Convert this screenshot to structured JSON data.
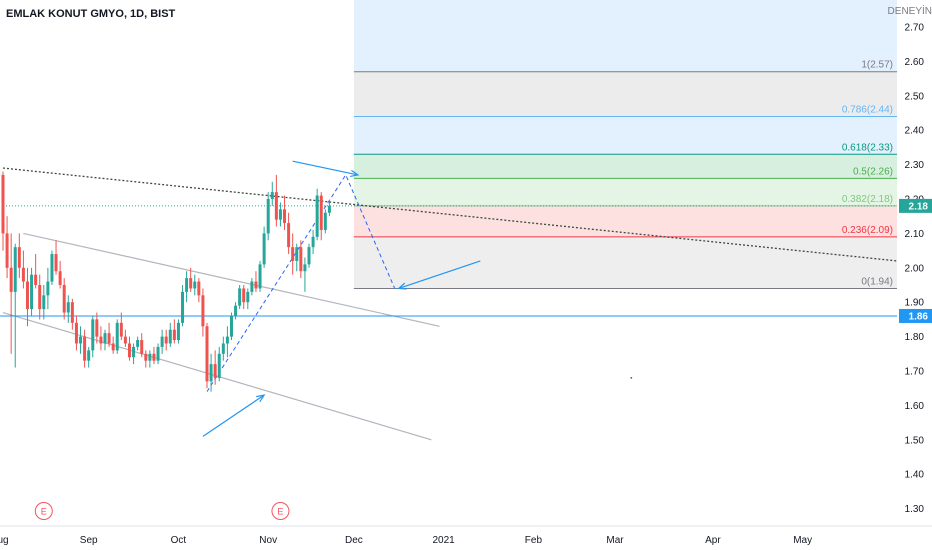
{
  "header": {
    "title": "EMLAK KONUT GMYO, 1D, BIST",
    "corner_text": "DENEYİN"
  },
  "chart_data": {
    "type": "candlestick",
    "ylim": [
      1.25,
      2.74
    ],
    "y_ticks": [
      "1.30",
      "1.40",
      "1.50",
      "1.60",
      "1.70",
      "1.80",
      "1.90",
      "2.00",
      "2.10",
      "2.20",
      "2.30",
      "2.40",
      "2.50",
      "2.60",
      "2.70"
    ],
    "x_ticks": [
      {
        "label": "ug",
        "bar": 0
      },
      {
        "label": "Sep",
        "bar": 21
      },
      {
        "label": "Oct",
        "bar": 43
      },
      {
        "label": "Nov",
        "bar": 65
      },
      {
        "label": "Dec",
        "bar": 86
      },
      {
        "label": "2021",
        "bar": 108
      },
      {
        "label": "Feb",
        "bar": 130
      },
      {
        "label": "Mar",
        "bar": 150
      },
      {
        "label": "Apr",
        "bar": 174
      },
      {
        "label": "May",
        "bar": 196
      }
    ],
    "price_labels": [
      {
        "text": "2.18",
        "value": 2.18,
        "color": "#26a69a"
      },
      {
        "text": "1.86",
        "value": 1.86,
        "color": "#2196f3"
      }
    ],
    "fibonacci": [
      {
        "label": "1(2.57)",
        "value": 2.57,
        "color": "#787b86"
      },
      {
        "label": "0.786(2.44)",
        "value": 2.44,
        "color": "#64b5f6"
      },
      {
        "label": "0.618(2.33)",
        "value": 2.33,
        "color": "#089981"
      },
      {
        "label": "0.5(2.26)",
        "value": 2.26,
        "color": "#4caf50"
      },
      {
        "label": "0.382(2.18)",
        "value": 2.18,
        "color": "#81c784"
      },
      {
        "label": "0.236(2.09)",
        "value": 2.09,
        "color": "#f23645"
      },
      {
        "label": "0(1.94)",
        "value": 1.94,
        "color": "#787b86"
      }
    ],
    "fib_zone_colors": [
      "#e3f0fd",
      "#ececec",
      "#e3f0fd",
      "#d6efde",
      "#e4f5e6",
      "#fde1e1"
    ],
    "earnings_markers": [
      {
        "label": "E",
        "bar": 10
      },
      {
        "label": "E",
        "bar": 68
      }
    ],
    "candles": [
      [
        2.27,
        2.28,
        2.05,
        2.1
      ],
      [
        2.1,
        2.15,
        1.97,
        2.0
      ],
      [
        2.0,
        2.1,
        1.75,
        1.93
      ],
      [
        1.93,
        2.07,
        1.71,
        2.06
      ],
      [
        2.06,
        2.1,
        1.97,
        2.0
      ],
      [
        2.0,
        2.05,
        1.94,
        1.96
      ],
      [
        1.96,
        2.0,
        1.83,
        1.88
      ],
      [
        1.88,
        2.0,
        1.86,
        1.98
      ],
      [
        1.98,
        2.04,
        1.94,
        1.95
      ],
      [
        1.95,
        1.98,
        1.85,
        1.88
      ],
      [
        1.88,
        1.95,
        1.85,
        1.92
      ],
      [
        1.92,
        2.0,
        1.88,
        1.96
      ],
      [
        1.96,
        2.05,
        1.95,
        2.04
      ],
      [
        2.04,
        2.08,
        1.98,
        1.99
      ],
      [
        1.99,
        2.02,
        1.94,
        1.95
      ],
      [
        1.95,
        1.97,
        1.85,
        1.87
      ],
      [
        1.87,
        1.92,
        1.84,
        1.9
      ],
      [
        1.9,
        1.91,
        1.82,
        1.84
      ],
      [
        1.84,
        1.86,
        1.76,
        1.78
      ],
      [
        1.78,
        1.83,
        1.75,
        1.8
      ],
      [
        1.8,
        1.82,
        1.71,
        1.73
      ],
      [
        1.73,
        1.77,
        1.71,
        1.76
      ],
      [
        1.76,
        1.86,
        1.74,
        1.85
      ],
      [
        1.85,
        1.87,
        1.78,
        1.8
      ],
      [
        1.8,
        1.83,
        1.76,
        1.78
      ],
      [
        1.78,
        1.82,
        1.76,
        1.81
      ],
      [
        1.81,
        1.84,
        1.77,
        1.78
      ],
      [
        1.78,
        1.8,
        1.75,
        1.76
      ],
      [
        1.76,
        1.85,
        1.75,
        1.84
      ],
      [
        1.84,
        1.87,
        1.79,
        1.8
      ],
      [
        1.8,
        1.82,
        1.77,
        1.78
      ],
      [
        1.78,
        1.8,
        1.73,
        1.74
      ],
      [
        1.74,
        1.78,
        1.72,
        1.77
      ],
      [
        1.77,
        1.8,
        1.76,
        1.79
      ],
      [
        1.79,
        1.81,
        1.74,
        1.75
      ],
      [
        1.75,
        1.76,
        1.71,
        1.73
      ],
      [
        1.73,
        1.76,
        1.71,
        1.75
      ],
      [
        1.75,
        1.77,
        1.72,
        1.73
      ],
      [
        1.73,
        1.78,
        1.72,
        1.77
      ],
      [
        1.77,
        1.82,
        1.75,
        1.8
      ],
      [
        1.8,
        1.82,
        1.76,
        1.78
      ],
      [
        1.78,
        1.84,
        1.77,
        1.82
      ],
      [
        1.82,
        1.85,
        1.78,
        1.79
      ],
      [
        1.79,
        1.85,
        1.78,
        1.84
      ],
      [
        1.84,
        1.95,
        1.83,
        1.93
      ],
      [
        1.93,
        1.99,
        1.9,
        1.97
      ],
      [
        1.97,
        2.0,
        1.93,
        1.94
      ],
      [
        1.94,
        1.98,
        1.92,
        1.96
      ],
      [
        1.96,
        1.97,
        1.9,
        1.92
      ],
      [
        1.92,
        1.94,
        1.8,
        1.83
      ],
      [
        1.83,
        1.84,
        1.65,
        1.67
      ],
      [
        1.67,
        1.75,
        1.64,
        1.72
      ],
      [
        1.72,
        1.76,
        1.66,
        1.68
      ],
      [
        1.68,
        1.77,
        1.67,
        1.75
      ],
      [
        1.75,
        1.8,
        1.73,
        1.78
      ],
      [
        1.78,
        1.83,
        1.74,
        1.8
      ],
      [
        1.8,
        1.87,
        1.79,
        1.86
      ],
      [
        1.86,
        1.9,
        1.85,
        1.89
      ],
      [
        1.89,
        1.95,
        1.88,
        1.94
      ],
      [
        1.94,
        1.95,
        1.88,
        1.9
      ],
      [
        1.9,
        1.94,
        1.88,
        1.93
      ],
      [
        1.93,
        1.97,
        1.92,
        1.96
      ],
      [
        1.96,
        1.99,
        1.93,
        1.94
      ],
      [
        1.94,
        2.02,
        1.93,
        2.01
      ],
      [
        2.01,
        2.12,
        2.0,
        2.1
      ],
      [
        2.1,
        2.22,
        2.08,
        2.2
      ],
      [
        2.2,
        2.25,
        2.18,
        2.22
      ],
      [
        2.22,
        2.27,
        2.12,
        2.14
      ],
      [
        2.14,
        2.19,
        2.12,
        2.17
      ],
      [
        2.17,
        2.21,
        2.11,
        2.13
      ],
      [
        2.13,
        2.16,
        2.04,
        2.06
      ],
      [
        2.06,
        2.1,
        1.98,
        2.02
      ],
      [
        2.02,
        2.07,
        1.99,
        2.06
      ],
      [
        2.06,
        2.08,
        1.97,
        1.99
      ],
      [
        1.99,
        2.03,
        1.93,
        2.01
      ],
      [
        2.01,
        2.07,
        2.0,
        2.06
      ],
      [
        2.06,
        2.11,
        2.04,
        2.09
      ],
      [
        2.09,
        2.23,
        2.08,
        2.21
      ],
      [
        2.21,
        2.22,
        2.08,
        2.11
      ],
      [
        2.11,
        2.17,
        2.1,
        2.16
      ],
      [
        2.16,
        2.19,
        2.15,
        2.18
      ]
    ],
    "shapes": {
      "dotted_trend": {
        "from": {
          "bar": 0,
          "value": 2.29
        },
        "to": {
          "bar": 238,
          "value": 2.02
        },
        "color": "#3c4a3f"
      },
      "dotted_level": {
        "from": {
          "bar": 0,
          "value": 2.18
        },
        "to": {
          "bar": 80,
          "value": 2.18
        },
        "color": "#26a69a"
      },
      "channel_upper": {
        "from": {
          "bar": 5,
          "value": 2.1
        },
        "to": {
          "bar": 107,
          "value": 1.83
        },
        "color": "#b2b5be"
      },
      "channel_lower": {
        "from": {
          "bar": 0,
          "value": 1.87
        },
        "to": {
          "bar": 105,
          "value": 1.5
        },
        "color": "#b2b5be"
      },
      "level_186": {
        "value": 1.86,
        "color": "#2196f3"
      },
      "dashed_path": [
        {
          "bar": 50,
          "value": 1.64
        },
        {
          "bar": 84,
          "value": 2.27
        },
        {
          "bar": 96,
          "value": 1.94
        }
      ],
      "arrows": [
        {
          "from": {
            "bar": 49,
            "value": 1.51
          },
          "to": {
            "bar": 64,
            "value": 1.63
          }
        },
        {
          "from": {
            "bar": 71,
            "value": 2.31
          },
          "to": {
            "bar": 87,
            "value": 2.27
          }
        },
        {
          "from": {
            "bar": 117,
            "value": 2.02
          },
          "to": {
            "bar": 97,
            "value": 1.94
          }
        }
      ],
      "dot": {
        "bar": 154,
        "value": 1.68
      }
    },
    "colors": {
      "up": "#26a69a",
      "down": "#ef5350",
      "axis_text": "#131722",
      "grid": "#f0f3fa"
    }
  }
}
